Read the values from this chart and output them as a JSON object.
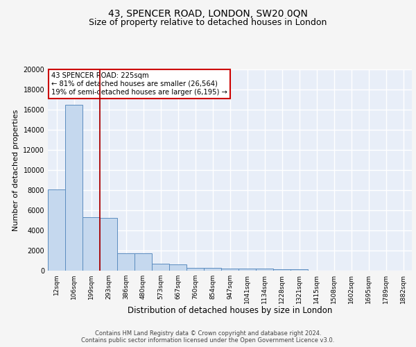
{
  "title": "43, SPENCER ROAD, LONDON, SW20 0QN",
  "subtitle": "Size of property relative to detached houses in London",
  "xlabel": "Distribution of detached houses by size in London",
  "ylabel": "Number of detached properties",
  "categories": [
    "12sqm",
    "106sqm",
    "199sqm",
    "293sqm",
    "386sqm",
    "480sqm",
    "573sqm",
    "667sqm",
    "760sqm",
    "854sqm",
    "947sqm",
    "1041sqm",
    "1134sqm",
    "1228sqm",
    "1321sqm",
    "1415sqm",
    "1508sqm",
    "1602sqm",
    "1695sqm",
    "1789sqm",
    "1882sqm"
  ],
  "values": [
    8100,
    16500,
    5300,
    5250,
    1750,
    1700,
    680,
    650,
    290,
    270,
    220,
    190,
    180,
    160,
    150,
    0,
    0,
    0,
    0,
    0,
    0
  ],
  "bar_color": "#c5d8ee",
  "bar_edge_color": "#5b8cbf",
  "vline_x": 2.5,
  "vline_color": "#aa0000",
  "annotation_text": "43 SPENCER ROAD: 225sqm\n← 81% of detached houses are smaller (26,564)\n19% of semi-detached houses are larger (6,195) →",
  "annotation_box_color": "#ffffff",
  "annotation_box_edge": "#cc0000",
  "ylim": [
    0,
    20000
  ],
  "yticks": [
    0,
    2000,
    4000,
    6000,
    8000,
    10000,
    12000,
    14000,
    16000,
    18000,
    20000
  ],
  "background_color": "#e8eef8",
  "grid_color": "#ffffff",
  "footer_text": "Contains HM Land Registry data © Crown copyright and database right 2024.\nContains public sector information licensed under the Open Government Licence v3.0.",
  "title_fontsize": 10,
  "subtitle_fontsize": 9,
  "tick_fontsize": 6.5,
  "ylabel_fontsize": 8,
  "xlabel_fontsize": 8.5,
  "footer_fontsize": 6
}
